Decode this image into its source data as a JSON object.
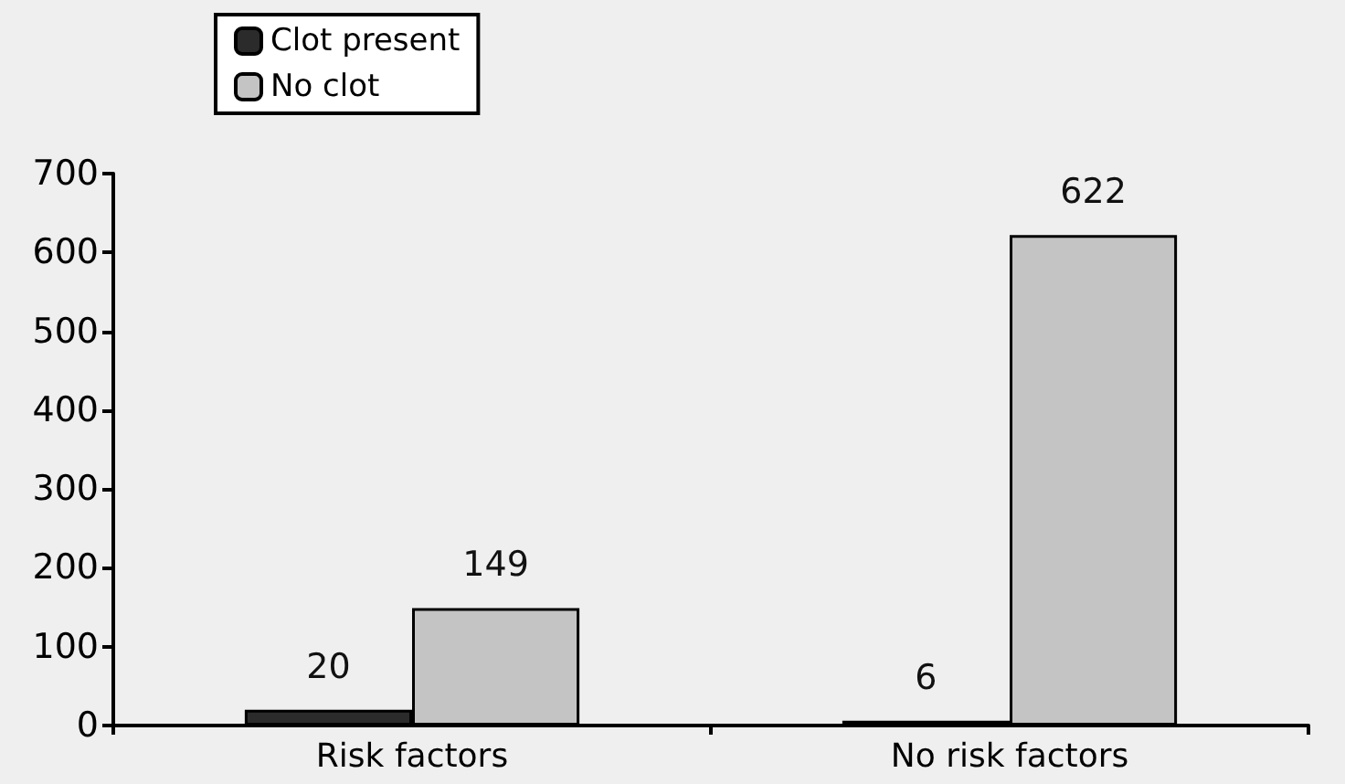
{
  "chart_data": {
    "type": "bar",
    "categories": [
      "Risk factors",
      "No risk factors"
    ],
    "series": [
      {
        "name": "Clot present",
        "color": "#2b2b2b",
        "values": [
          20,
          6
        ]
      },
      {
        "name": "No clot",
        "color": "#c4c4c4",
        "values": [
          149,
          622
        ]
      }
    ],
    "ylim": [
      0,
      700
    ],
    "yticks": [
      0,
      100,
      200,
      300,
      400,
      500,
      600,
      700
    ],
    "grid": false,
    "legend": "top left",
    "data_labels": true
  }
}
